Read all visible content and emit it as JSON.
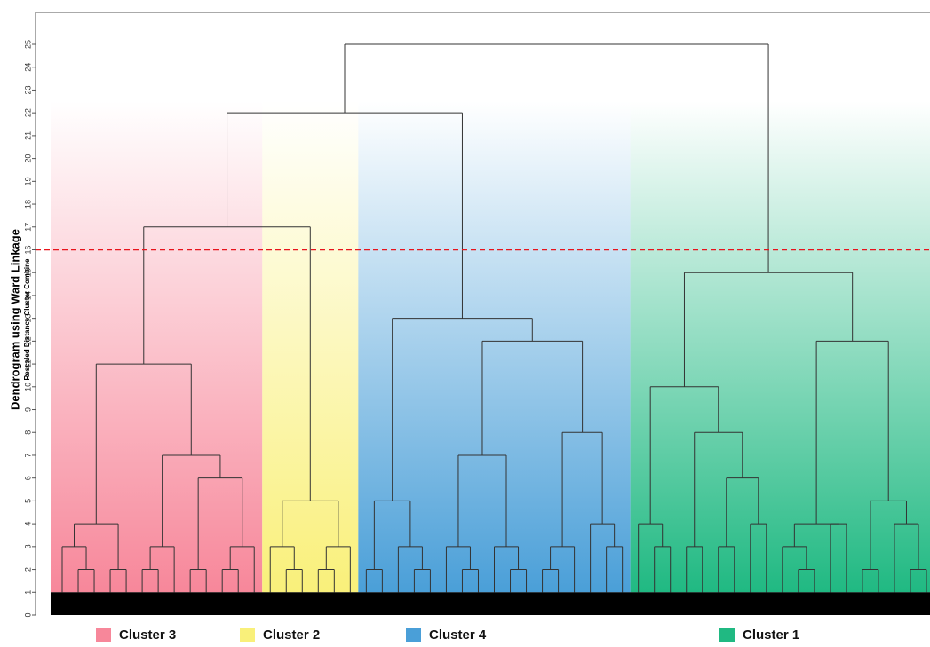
{
  "chart_data": {
    "type": "dendrogram",
    "title": "Dendrogram using Ward Linkage",
    "ylabel": "Rescaled Distance Cluster Combine",
    "ylim": [
      0,
      26.4
    ],
    "yticks": [
      0,
      1,
      2,
      3,
      4,
      5,
      6,
      7,
      8,
      9,
      10,
      11,
      12,
      13,
      14,
      15,
      16,
      17,
      18,
      19,
      20,
      21,
      22,
      23,
      24,
      25
    ],
    "cut": 16,
    "cut_color": "#e8141c",
    "line_color": "#333333",
    "legend": [
      {
        "name": "Cluster 3",
        "color": "#f7879a"
      },
      {
        "name": "Cluster 2",
        "color": "#f9f07a"
      },
      {
        "name": "Cluster 4",
        "color": "#4a9fd8"
      },
      {
        "name": "Cluster 1",
        "color": "#20b982"
      }
    ],
    "tree": {
      "h": 25,
      "c": [
        {
          "h": 22,
          "c": [
            {
              "h": 17,
              "c": [
                {
                  "h": 11,
                  "legend": 0,
                  "c": [
                    {
                      "h": 4,
                      "c": [
                        {
                          "h": 3,
                          "c": [
                            1,
                            {
                              "h": 2,
                              "c": [
                                1,
                                1
                              ]
                            }
                          ]
                        },
                        {
                          "h": 2,
                          "c": [
                            1,
                            1
                          ]
                        }
                      ]
                    },
                    {
                      "h": 7,
                      "c": [
                        {
                          "h": 3,
                          "c": [
                            {
                              "h": 2,
                              "c": [
                                1,
                                1
                              ]
                            },
                            1
                          ]
                        },
                        {
                          "h": 6,
                          "c": [
                            {
                              "h": 2,
                              "c": [
                                1,
                                1
                              ]
                            },
                            {
                              "h": 3,
                              "c": [
                                {
                                  "h": 2,
                                  "c": [
                                    1,
                                    1
                                  ]
                                },
                                1
                              ]
                            }
                          ]
                        }
                      ]
                    }
                  ]
                },
                {
                  "h": 5,
                  "legend": 1,
                  "c": [
                    {
                      "h": 3,
                      "c": [
                        1,
                        {
                          "h": 2,
                          "c": [
                            1,
                            1
                          ]
                        }
                      ]
                    },
                    {
                      "h": 3,
                      "c": [
                        {
                          "h": 2,
                          "c": [
                            1,
                            1
                          ]
                        },
                        1
                      ]
                    }
                  ]
                }
              ]
            },
            {
              "h": 13,
              "legend": 2,
              "c": [
                {
                  "h": 5,
                  "c": [
                    {
                      "h": 2,
                      "c": [
                        1,
                        1
                      ]
                    },
                    {
                      "h": 3,
                      "c": [
                        1,
                        {
                          "h": 2,
                          "c": [
                            1,
                            1
                          ]
                        }
                      ]
                    }
                  ]
                },
                {
                  "h": 12,
                  "c": [
                    {
                      "h": 7,
                      "c": [
                        {
                          "h": 3,
                          "c": [
                            1,
                            {
                              "h": 2,
                              "c": [
                                1,
                                1
                              ]
                            }
                          ]
                        },
                        {
                          "h": 3,
                          "c": [
                            1,
                            {
                              "h": 2,
                              "c": [
                                1,
                                1
                              ]
                            }
                          ]
                        }
                      ]
                    },
                    {
                      "h": 8,
                      "c": [
                        {
                          "h": 3,
                          "c": [
                            {
                              "h": 2,
                              "c": [
                                1,
                                1
                              ]
                            },
                            1
                          ]
                        },
                        {
                          "h": 4,
                          "c": [
                            1,
                            {
                              "h": 3,
                              "c": [
                                1,
                                1
                              ]
                            }
                          ]
                        }
                      ]
                    }
                  ]
                }
              ]
            }
          ]
        },
        {
          "h": 15,
          "legend": 3,
          "c": [
            {
              "h": 10,
              "c": [
                {
                  "h": 4,
                  "c": [
                    1,
                    {
                      "h": 3,
                      "c": [
                        1,
                        1
                      ]
                    }
                  ]
                },
                {
                  "h": 8,
                  "c": [
                    {
                      "h": 3,
                      "c": [
                        1,
                        1
                      ]
                    },
                    {
                      "h": 6,
                      "c": [
                        {
                          "h": 3,
                          "c": [
                            1,
                            1
                          ]
                        },
                        {
                          "h": 4,
                          "c": [
                            1,
                            1
                          ]
                        }
                      ]
                    }
                  ]
                }
              ]
            },
            {
              "h": 12,
              "c": [
                {
                  "h": 4,
                  "c": [
                    {
                      "h": 3,
                      "c": [
                        1,
                        {
                          "h": 2,
                          "c": [
                            1,
                            1
                          ]
                        }
                      ]
                    },
                    {
                      "h": 4,
                      "c": [
                        1,
                        1
                      ]
                    }
                  ]
                },
                {
                  "h": 5,
                  "c": [
                    {
                      "h": 2,
                      "c": [
                        1,
                        1
                      ]
                    },
                    {
                      "h": 4,
                      "c": [
                        1,
                        {
                          "h": 2,
                          "c": [
                            1,
                            1
                          ]
                        }
                      ]
                    }
                  ]
                }
              ]
            }
          ]
        }
      ]
    }
  }
}
